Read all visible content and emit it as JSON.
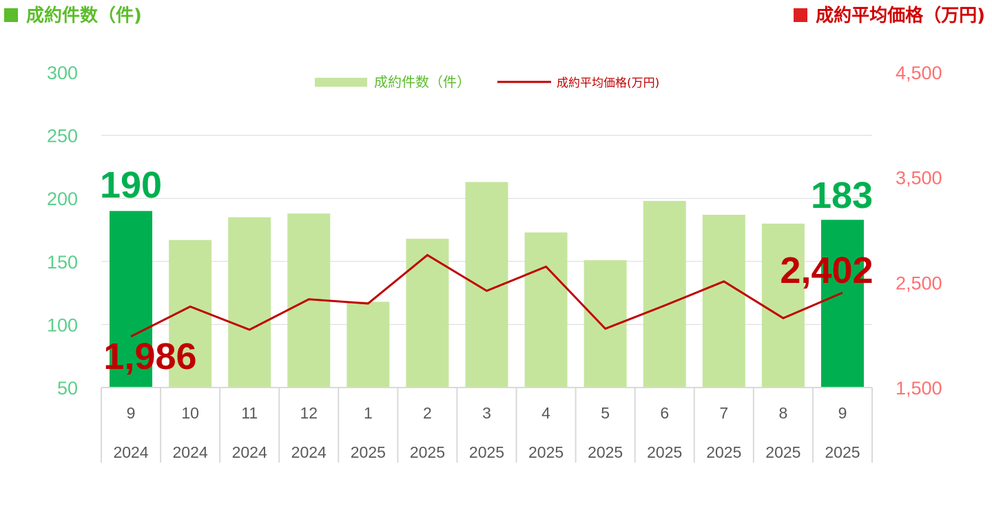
{
  "header": {
    "left_title": "成約件数（件)",
    "right_title": "成約平均価格（万円)"
  },
  "chart_data": {
    "type": "bar+line",
    "categories": [
      {
        "month": "9",
        "year": "2024"
      },
      {
        "month": "10",
        "year": "2024"
      },
      {
        "month": "11",
        "year": "2024"
      },
      {
        "month": "12",
        "year": "2024"
      },
      {
        "month": "1",
        "year": "2025"
      },
      {
        "month": "2",
        "year": "2025"
      },
      {
        "month": "3",
        "year": "2025"
      },
      {
        "month": "4",
        "year": "2025"
      },
      {
        "month": "5",
        "year": "2025"
      },
      {
        "month": "6",
        "year": "2025"
      },
      {
        "month": "7",
        "year": "2025"
      },
      {
        "month": "8",
        "year": "2025"
      },
      {
        "month": "9",
        "year": "2025"
      }
    ],
    "series": [
      {
        "name": "成約件数（件）",
        "type": "bar",
        "axis": "left",
        "values": [
          190,
          167,
          185,
          188,
          118,
          168,
          213,
          173,
          151,
          198,
          187,
          180,
          183
        ],
        "highlight_indices": [
          0,
          12
        ]
      },
      {
        "name": "成約平均価格(万円)",
        "type": "line",
        "axis": "right",
        "values": [
          1986,
          2270,
          2050,
          2340,
          2300,
          2760,
          2420,
          2650,
          2060,
          2280,
          2510,
          2160,
          2402
        ]
      }
    ],
    "y_left": {
      "min": 50,
      "max": 300,
      "ticks": [
        "50",
        "100",
        "150",
        "200",
        "250",
        "300"
      ]
    },
    "y_right": {
      "min": 1500,
      "max": 4500,
      "ticks": [
        "1,500",
        "2,500",
        "3,500",
        "4,500"
      ]
    },
    "annotations": {
      "bar_first": "190",
      "bar_last": "183",
      "line_first": "1,986",
      "line_last": "2,402"
    },
    "legend_position": "top-center",
    "colors": {
      "bar": "#c5e59d",
      "bar_highlight": "#00b050",
      "line": "#c00000",
      "left_axis_text": "#5bcf8a",
      "right_axis_text": "#ff7070",
      "annotation_bar": "#00b050",
      "annotation_line": "#c00000",
      "header_left_square": "#5bbd2b",
      "header_left_text": "#5bbd2b",
      "header_right_square": "#e02020",
      "header_right_text": "#d00000",
      "gridline": "#d9d9d9",
      "category_text": "#595959"
    }
  }
}
